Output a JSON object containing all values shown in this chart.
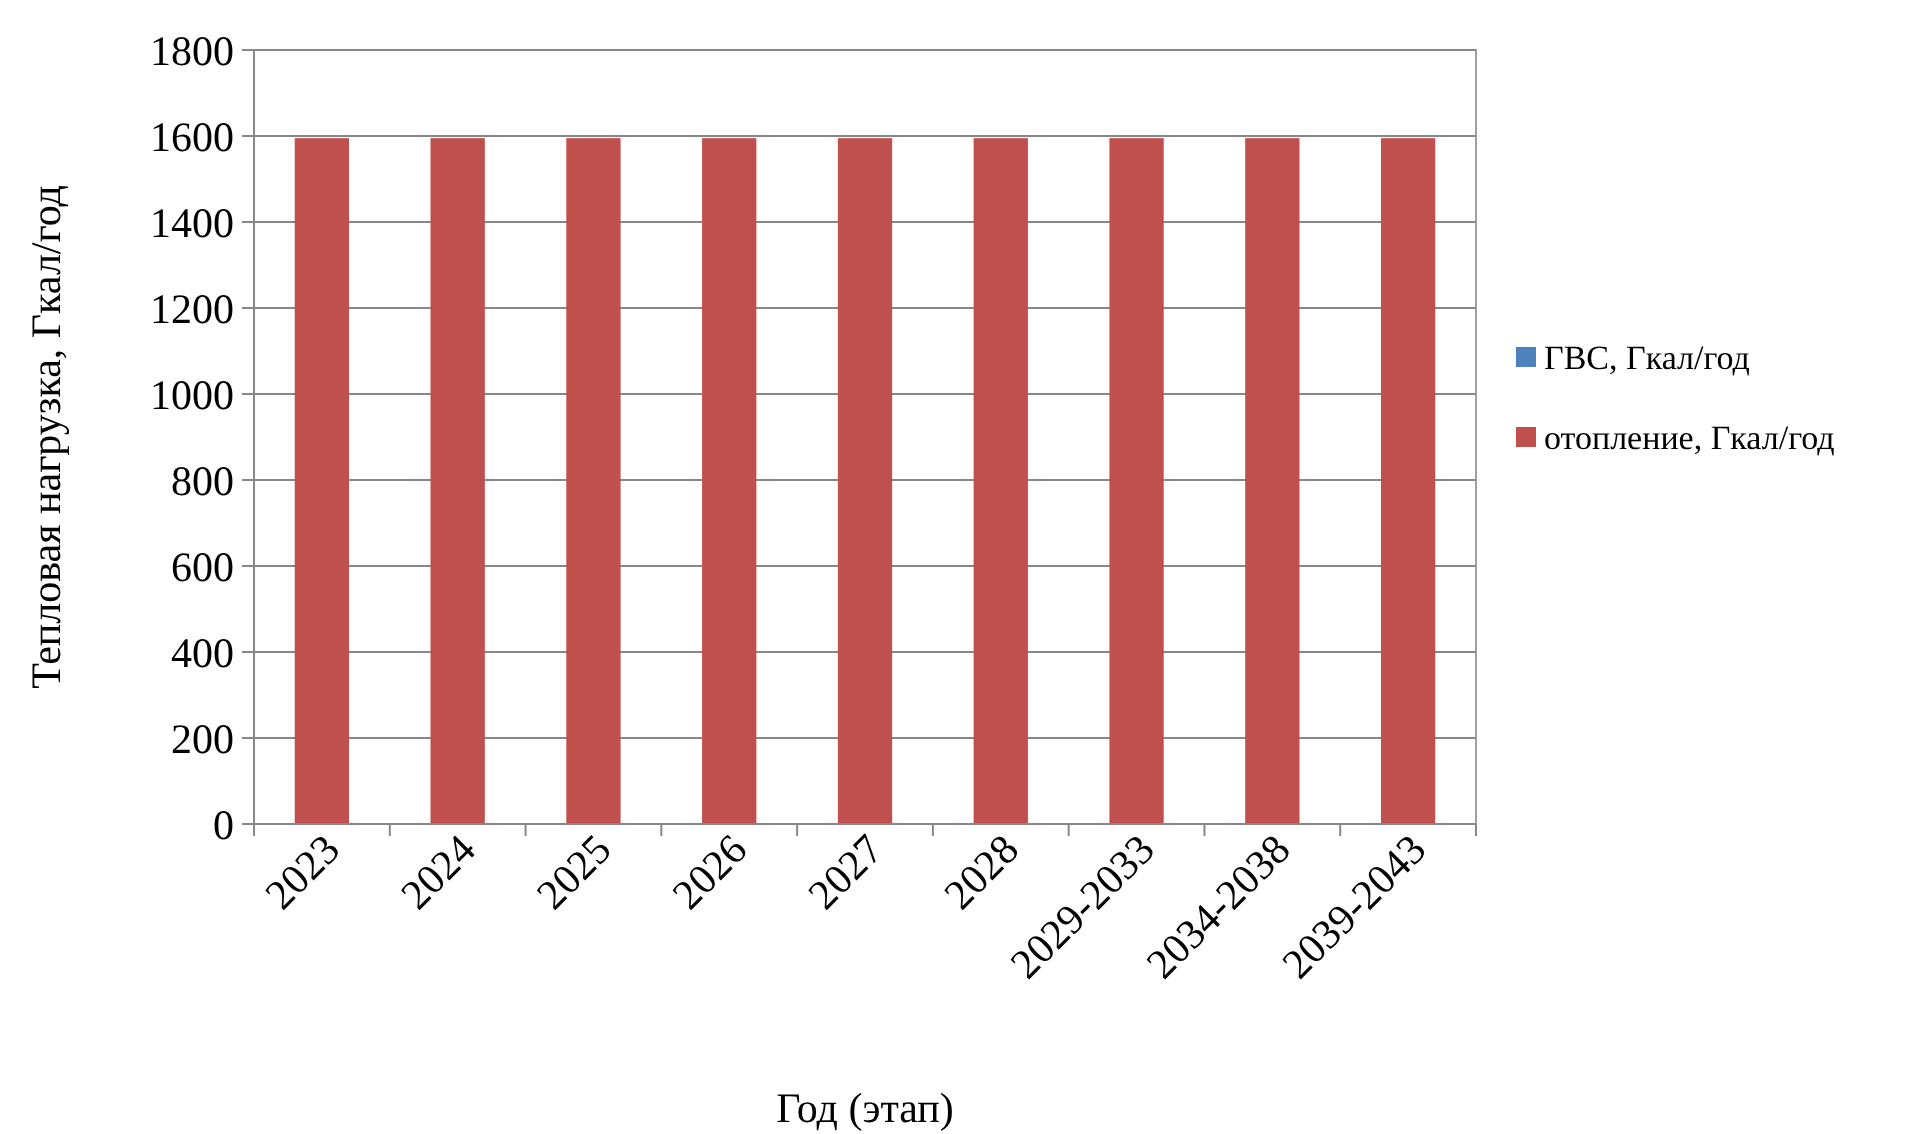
{
  "chart_data": {
    "type": "bar",
    "stacked": true,
    "xlabel": "Год (этап)",
    "ylabel": "Тепловая нагрузка, Гкал/год",
    "categories": [
      "2023",
      "2024",
      "2025",
      "2026",
      "2027",
      "2028",
      "2029-2033",
      "2034-2038",
      "2039-2043"
    ],
    "series": [
      {
        "name": "ГВС, Гкал/год",
        "color": "#4f81bd",
        "values": [
          0,
          0,
          0,
          0,
          0,
          0,
          0,
          0,
          0
        ]
      },
      {
        "name": "отопление, Гкал/год",
        "color": "#c0504d",
        "values": [
          1595,
          1595,
          1595,
          1595,
          1595,
          1595,
          1595,
          1595,
          1595
        ]
      }
    ],
    "ylim": [
      0,
      1800
    ],
    "yticks": [
      0,
      200,
      400,
      600,
      800,
      1000,
      1200,
      1400,
      1600,
      1800
    ],
    "grid": "y",
    "legend": "right"
  }
}
